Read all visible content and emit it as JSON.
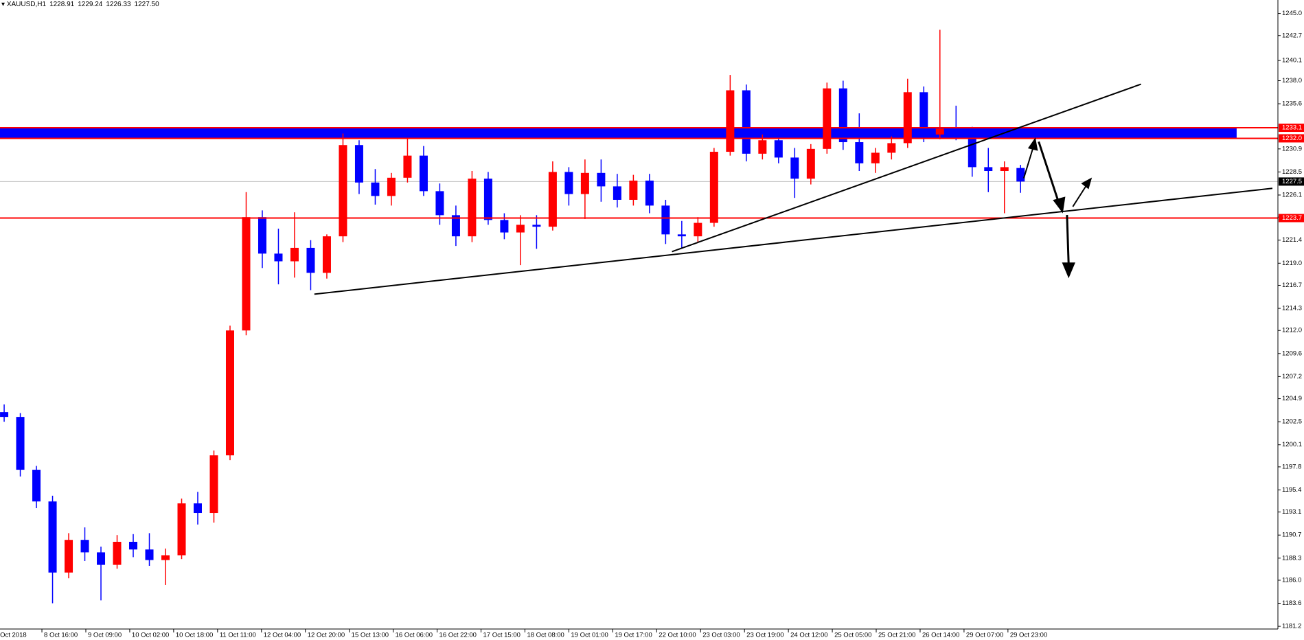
{
  "header": {
    "symbol": "XAUUSD,H1",
    "ohlc": [
      1228.91,
      1229.24,
      1226.33,
      {
        "value": 1227.5,
        "label": "1227.50"
      }
    ]
  },
  "chart_data": {
    "type": "candlestick",
    "x_labels": [
      "Oct 2018",
      "8 Oct 16:00",
      "9 Oct 09:00",
      "10 Oct 02:00",
      "10 Oct 18:00",
      "11 Oct 11:00",
      "12 Oct 04:00",
      "12 Oct 20:00",
      "15 Oct 13:00",
      "16 Oct 06:00",
      "16 Oct 22:00",
      "17 Oct 15:00",
      "18 Oct 08:00",
      "19 Oct 01:00",
      "19 Oct 17:00",
      "22 Oct 10:00",
      "23 Oct 03:00",
      "23 Oct 19:00",
      "24 Oct 12:00",
      "25 Oct 05:00",
      "25 Oct 21:00",
      "26 Oct 14:00",
      "29 Oct 07:00",
      "29 Oct 23:00"
    ],
    "candles": [
      [
        1203.5,
        1204.3,
        1202.5,
        1203.0
      ],
      [
        1203.0,
        1203.4,
        1196.8,
        1197.5
      ],
      [
        1197.5,
        1197.9,
        1193.5,
        1194.2
      ],
      [
        1194.2,
        1194.8,
        1183.6,
        1186.8
      ],
      [
        1186.8,
        1190.9,
        1186.2,
        1190.2
      ],
      [
        1190.2,
        1191.5,
        1188.0,
        1188.9
      ],
      [
        1188.9,
        1189.5,
        1183.9,
        1187.6
      ],
      [
        1187.6,
        1190.7,
        1187.2,
        1190.0
      ],
      [
        1190.0,
        1190.8,
        1188.4,
        1189.2
      ],
      [
        1189.2,
        1190.9,
        1187.5,
        1188.1
      ],
      [
        1188.1,
        1189.3,
        1185.5,
        1188.6
      ],
      [
        1188.6,
        1194.5,
        1188.2,
        1194.0
      ],
      [
        1194.0,
        1195.2,
        1191.8,
        1193.0
      ],
      [
        1193.0,
        1199.5,
        1192.0,
        1199.0
      ],
      [
        1199.0,
        1212.5,
        1198.5,
        1212.0
      ],
      [
        1212.0,
        1226.4,
        1211.5,
        1223.8
      ],
      [
        1223.8,
        1224.5,
        1218.5,
        1220.0
      ],
      [
        1220.0,
        1222.6,
        1216.8,
        1219.2
      ],
      [
        1219.2,
        1224.3,
        1217.5,
        1220.6
      ],
      [
        1220.6,
        1221.4,
        1216.2,
        1218.0
      ],
      [
        1218.0,
        1222.0,
        1217.4,
        1221.8
      ],
      [
        1221.8,
        1232.5,
        1221.2,
        1231.3
      ],
      [
        1231.3,
        1231.8,
        1226.2,
        1227.4
      ],
      [
        1227.4,
        1228.8,
        1225.1,
        1226.0
      ],
      [
        1226.0,
        1228.4,
        1225.0,
        1227.9
      ],
      [
        1227.9,
        1232.0,
        1227.4,
        1230.2
      ],
      [
        1230.2,
        1231.2,
        1226.0,
        1226.5
      ],
      [
        1226.5,
        1227.3,
        1223.0,
        1224.0
      ],
      [
        1224.0,
        1225.0,
        1220.8,
        1221.8
      ],
      [
        1221.8,
        1228.6,
        1221.2,
        1227.8
      ],
      [
        1227.8,
        1228.5,
        1223.0,
        1223.5
      ],
      [
        1223.5,
        1224.2,
        1221.5,
        1222.2
      ],
      [
        1222.2,
        1224.0,
        1218.8,
        1223.0
      ],
      [
        1223.0,
        1224.0,
        1220.5,
        1222.8
      ],
      [
        1222.8,
        1229.6,
        1222.4,
        1228.5
      ],
      [
        1228.5,
        1229.0,
        1225.0,
        1226.2
      ],
      [
        1226.2,
        1229.8,
        1223.6,
        1228.4
      ],
      [
        1228.4,
        1229.8,
        1225.4,
        1227.0
      ],
      [
        1227.0,
        1228.3,
        1224.8,
        1225.6
      ],
      [
        1225.6,
        1228.2,
        1225.0,
        1227.6
      ],
      [
        1227.6,
        1228.3,
        1224.2,
        1225.0
      ],
      [
        1225.0,
        1225.6,
        1221.0,
        1222.0
      ],
      [
        1222.0,
        1223.4,
        1220.6,
        1221.8
      ],
      [
        1221.8,
        1223.8,
        1221.2,
        1223.2
      ],
      [
        1223.2,
        1231.0,
        1222.8,
        1230.6
      ],
      [
        1230.6,
        1238.6,
        1230.2,
        1237.0
      ],
      [
        1237.0,
        1237.6,
        1229.6,
        1230.4
      ],
      [
        1230.4,
        1232.4,
        1229.8,
        1231.8
      ],
      [
        1231.8,
        1232.6,
        1229.4,
        1230.0
      ],
      [
        1230.0,
        1231.0,
        1225.8,
        1227.8
      ],
      [
        1227.8,
        1231.4,
        1227.2,
        1230.9
      ],
      [
        1230.9,
        1237.8,
        1230.4,
        1237.2
      ],
      [
        1237.2,
        1238.0,
        1230.8,
        1231.6
      ],
      [
        1231.6,
        1234.6,
        1228.6,
        1229.4
      ],
      [
        1229.4,
        1231.0,
        1228.4,
        1230.5
      ],
      [
        1230.5,
        1232.2,
        1229.8,
        1231.5
      ],
      [
        1231.5,
        1238.2,
        1231.0,
        1236.8
      ],
      [
        1236.8,
        1237.4,
        1231.6,
        1232.4
      ],
      [
        1232.4,
        1243.3,
        1231.9,
        1233.0
      ],
      [
        1233.0,
        1235.4,
        1231.8,
        1232.6
      ],
      [
        1232.6,
        1233.2,
        1228.0,
        1229.0
      ],
      [
        1229.0,
        1231.0,
        1226.4,
        1228.6
      ],
      [
        1228.6,
        1229.6,
        1224.2,
        1229.0
      ],
      [
        1228.91,
        1229.24,
        1226.33,
        1227.5
      ]
    ],
    "up_color": "#ff0000",
    "down_color": "#0000ff",
    "ylim": [
      1180.85,
      1246.4
    ],
    "yticks": [
      {
        "value": 1245,
        "label": "1245.0"
      },
      1242.7,
      1240.1,
      {
        "value": 1238,
        "label": "1238.0"
      },
      1235.6,
      1230.9,
      1228.5,
      1226.1,
      1223.8,
      1221.4,
      {
        "value": 1219,
        "label": "1219.0"
      },
      1216.7,
      1214.3,
      {
        "value": 1212,
        "label": "1212.0"
      },
      1209.6,
      1207.2,
      1204.9,
      1202.5,
      1200.1,
      1197.8,
      1195.4,
      1193.1,
      1190.7,
      1188.3,
      {
        "value": 1186,
        "label": "1186.0"
      },
      1183.6,
      1181.2
    ],
    "hlines": [
      1233.1,
      {
        "value": 1232,
        "label": "1232.0"
      },
      1223.7
    ],
    "hline_color": "#ff0000",
    "zone_color": "#0000ff",
    "price_line": 1227.5,
    "price_line_color": "#c0c0c0"
  }
}
